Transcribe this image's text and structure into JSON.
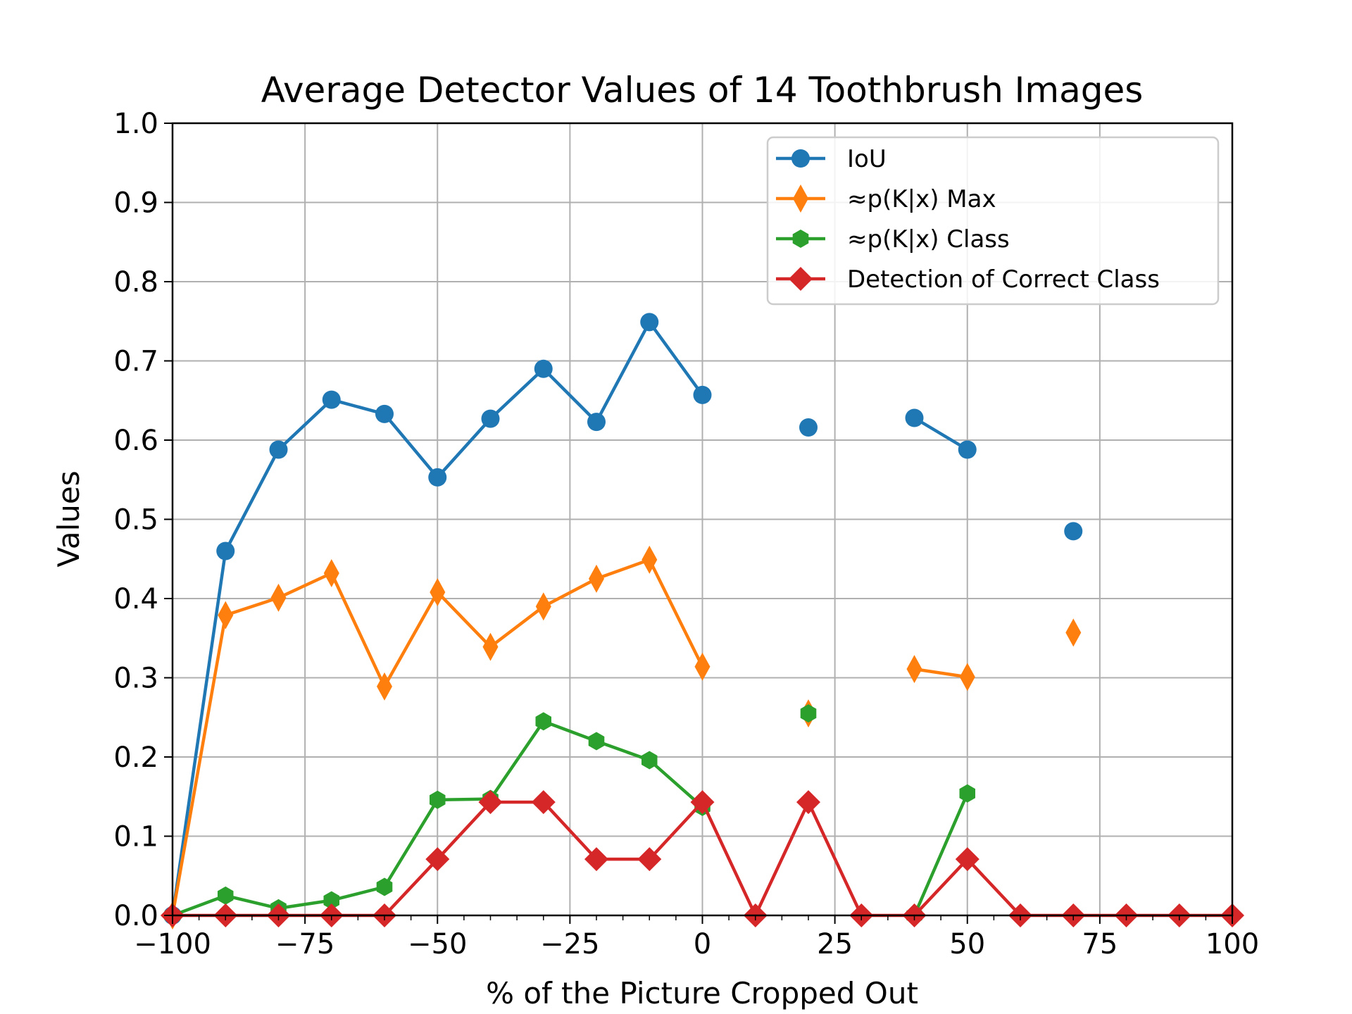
{
  "chart_data": {
    "type": "line",
    "title": "Average Detector Values of 14 Toothbrush Images",
    "xlabel": "% of the Picture Cropped Out",
    "ylabel": "Values",
    "xlim": [
      -100,
      100
    ],
    "ylim": [
      0,
      1.0
    ],
    "xticks": [
      -100,
      -75,
      -50,
      -25,
      0,
      25,
      50,
      75,
      100
    ],
    "xtick_labels": [
      "−100",
      "−75",
      "−50",
      "−25",
      "0",
      "25",
      "50",
      "75",
      "100"
    ],
    "yticks": [
      0,
      0.1,
      0.2,
      0.3,
      0.4,
      0.5,
      0.6,
      0.7,
      0.8,
      0.9,
      1.0
    ],
    "ytick_labels": [
      "0.0",
      "0.1",
      "0.2",
      "0.3",
      "0.4",
      "0.5",
      "0.6",
      "0.7",
      "0.8",
      "0.9",
      "1.0"
    ],
    "grid": true,
    "legend_position": "top-right",
    "x": [
      -100,
      -90,
      -80,
      -70,
      -60,
      -50,
      -40,
      -30,
      -20,
      -10,
      0,
      10,
      20,
      30,
      40,
      50,
      60,
      70,
      80,
      90,
      100
    ],
    "series": [
      {
        "name": "IoU",
        "color": "#1f77b4",
        "marker": "circle",
        "values": [
          0.0,
          0.46,
          0.588,
          0.651,
          0.633,
          0.553,
          0.627,
          0.69,
          0.623,
          0.749,
          0.657,
          null,
          0.616,
          null,
          0.628,
          0.588,
          null,
          0.485,
          null,
          null,
          null
        ]
      },
      {
        "name": "≈p(K|x) Max",
        "color": "#ff7f0e",
        "marker": "thin-diamond",
        "values": [
          0.0,
          0.379,
          0.401,
          0.432,
          0.289,
          0.408,
          0.339,
          0.39,
          0.425,
          0.449,
          0.314,
          null,
          0.255,
          null,
          0.311,
          0.301,
          null,
          0.357,
          null,
          null,
          null
        ]
      },
      {
        "name": "≈p(K|x) Class",
        "color": "#2ca02c",
        "marker": "hexagon",
        "values": [
          0.0,
          0.025,
          0.009,
          0.019,
          0.036,
          0.146,
          0.147,
          0.245,
          0.22,
          0.196,
          0.137,
          null,
          0.255,
          null,
          0.0,
          0.154,
          null,
          null,
          null,
          null,
          null
        ]
      },
      {
        "name": "Detection of Correct Class",
        "color": "#d62728",
        "marker": "diamond",
        "values": [
          0.0,
          0.0,
          0.0,
          0.0,
          0.0,
          0.071,
          0.143,
          0.143,
          0.071,
          0.071,
          0.143,
          0.0,
          0.143,
          0.0,
          0.0,
          0.071,
          0.0,
          0.0,
          0.0,
          0.0,
          0.0
        ]
      }
    ]
  }
}
